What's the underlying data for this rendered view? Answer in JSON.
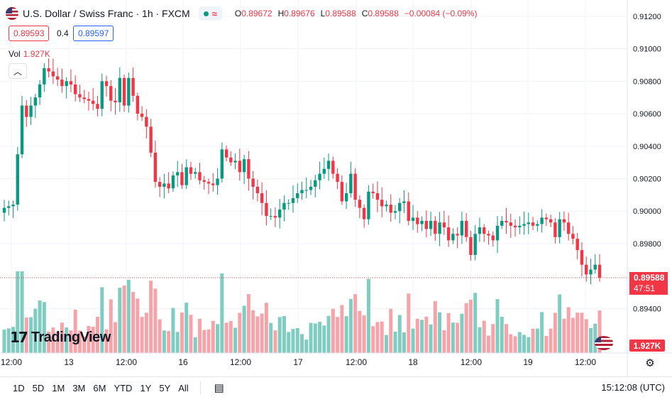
{
  "header": {
    "symbol_title": "U.S. Dollar / Swiss Franc · 1h · FXCM",
    "ohlc": [
      {
        "key": "O",
        "value": "0.89672"
      },
      {
        "key": "H",
        "value": "0.89676"
      },
      {
        "key": "L",
        "value": "0.89588"
      },
      {
        "key": "C",
        "value": "0.89588"
      },
      {
        "key": "",
        "value": "−0.00084 (−0.09%)"
      }
    ],
    "sell_price": "0.89593",
    "spread": "0.4",
    "buy_price": "0.89597",
    "volume_label": "Vol",
    "volume_value": "1.927K",
    "collapse_icon": "chevron-up-icon"
  },
  "logo_text": "TradingView",
  "price_axis": {
    "ticks": [
      "0.91200",
      "0.91000",
      "0.90800",
      "0.90600",
      "0.90400",
      "0.90200",
      "0.90000",
      "0.89800",
      "0.89400"
    ],
    "current_price": "0.89588",
    "countdown": "47:51",
    "volume_tag": "1.927K"
  },
  "time_axis": {
    "ticks": [
      "12:00",
      "13",
      "12:00",
      "16",
      "12:00",
      "17",
      "12:00",
      "18",
      "12:00",
      "19",
      "12:00"
    ]
  },
  "bottom_bar": {
    "ranges": [
      "1D",
      "5D",
      "1M",
      "3M",
      "6M",
      "YTD",
      "1Y",
      "5Y",
      "All"
    ],
    "clock": "15:12:08 (UTC)"
  },
  "colors": {
    "up": "#089981",
    "down": "#f23645",
    "up_volume": "#7fccc0",
    "down_volume": "#f7a3aa",
    "grid": "#f0f3fa"
  },
  "chart_data": {
    "type": "candlestick",
    "title": "U.S. Dollar / Swiss Franc · 1h · FXCM",
    "ylim": [
      0.8931,
      0.913
    ],
    "y_ticks": [
      0.912,
      0.91,
      0.908,
      0.906,
      0.904,
      0.902,
      0.9,
      0.898,
      0.894
    ],
    "series": [
      {
        "name": "USDCHF",
        "closes": [
          0.9002,
          0.9003,
          0.9004,
          0.9035,
          0.9065,
          0.9058,
          0.9065,
          0.907,
          0.9078,
          0.9088,
          0.9086,
          0.9083,
          0.9081,
          0.9077,
          0.908,
          0.9078,
          0.9072,
          0.907,
          0.9069,
          0.9068,
          0.9066,
          0.9063,
          0.908,
          0.9077,
          0.9068,
          0.9067,
          0.9082,
          0.9065,
          0.9082,
          0.9071,
          0.906,
          0.9058,
          0.9052,
          0.9036,
          0.9018,
          0.9015,
          0.9017,
          0.9014,
          0.9022,
          0.9024,
          0.9016,
          0.9027,
          0.9023,
          0.9024,
          0.9019,
          0.9018,
          0.9017,
          0.9016,
          0.902,
          0.9038,
          0.9033,
          0.903,
          0.9031,
          0.9024,
          0.9032,
          0.902,
          0.9015,
          0.9011,
          0.9005,
          0.8997,
          0.8997,
          0.8996,
          0.9001,
          0.9005,
          0.9005,
          0.9008,
          0.9011,
          0.9013,
          0.9013,
          0.9015,
          0.9019,
          0.9023,
          0.9026,
          0.9031,
          0.9023,
          0.9018,
          0.9006,
          0.9011,
          0.9023,
          0.9007,
          0.9002,
          0.8995,
          0.9012,
          0.9011,
          0.9007,
          0.9003,
          0.9004,
          0.8999,
          0.9,
          0.9005,
          0.9006,
          0.8994,
          0.8996,
          0.8992,
          0.8994,
          0.8989,
          0.8994,
          0.8986,
          0.8993,
          0.899,
          0.8982,
          0.8986,
          0.8985,
          0.8994,
          0.8984,
          0.8973,
          0.8986,
          0.899,
          0.8986,
          0.8985,
          0.8982,
          0.8991,
          0.8994,
          0.8993,
          0.8991,
          0.899,
          0.8991,
          0.8992,
          0.8993,
          0.8991,
          0.8992,
          0.8996,
          0.8995,
          0.8993,
          0.8984,
          0.8995,
          0.8993,
          0.8986,
          0.8983,
          0.8976,
          0.8967,
          0.8961,
          0.8964,
          0.8967,
          0.8959
        ]
      }
    ],
    "volume": {
      "name": "Vol",
      "last": "1.927K"
    }
  }
}
